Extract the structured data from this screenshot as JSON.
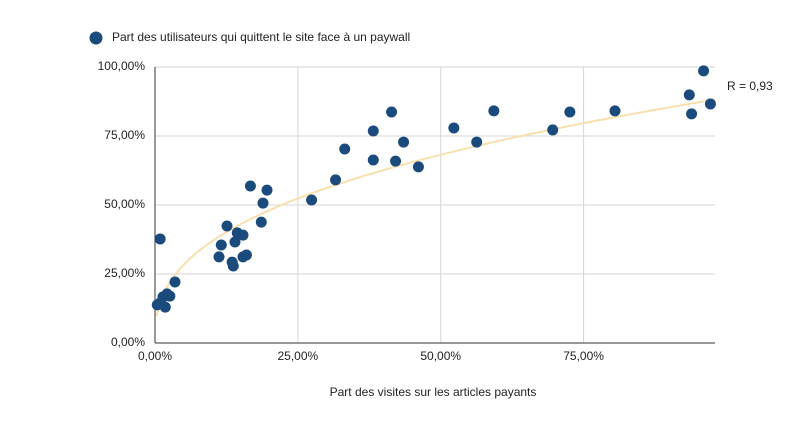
{
  "chart_data": {
    "type": "scatter",
    "x_label": "Part des visites sur les articles payants",
    "legend": "top-left",
    "grid": true,
    "xlim": [
      0,
      98
    ],
    "ylim": [
      0,
      100
    ],
    "xticks": [
      {
        "value": 0,
        "label": "0,00%"
      },
      {
        "value": 25,
        "label": "25,00%"
      },
      {
        "value": 50,
        "label": "50,00%"
      },
      {
        "value": 75,
        "label": "75,00%"
      }
    ],
    "yticks": [
      {
        "value": 0,
        "label": "0,00%"
      },
      {
        "value": 25,
        "label": "25,00%"
      },
      {
        "value": 50,
        "label": "50,00%"
      },
      {
        "value": 75,
        "label": "75,00%"
      },
      {
        "value": 100,
        "label": "100,00%"
      }
    ],
    "trendline": {
      "type": "power",
      "label": "R = 0,93",
      "color": "#f8dfae",
      "label_color": "#e8a23a"
    },
    "series": [
      {
        "name": "Part des utilisateurs qui quittent le site face à un paywall",
        "color": "#1b4a7c",
        "x": [
          0.9,
          0.4,
          0.9,
          1.4,
          1.8,
          2.1,
          2.6,
          3.5,
          11.6,
          12.6,
          11.2,
          13.5,
          13.7,
          14,
          14.4,
          15.4,
          15.4,
          16,
          16.7,
          18.6,
          18.9,
          19.6,
          27.4,
          31.6,
          33.2,
          38.2,
          38.2,
          41.4,
          42.1,
          43.5,
          46.1,
          52.3,
          56.3,
          59.3,
          69.6,
          72.6,
          80.5,
          93.5,
          93.9,
          96,
          97.2
        ],
        "values": [
          37.7,
          13.8,
          14.5,
          16.7,
          13,
          17.8,
          17,
          22.1,
          35.5,
          42.4,
          31.2,
          29.3,
          27.9,
          36.6,
          39.9,
          39.1,
          31.2,
          31.9,
          56.9,
          43.8,
          50.7,
          55.4,
          51.8,
          59.1,
          70.3,
          76.8,
          66.3,
          83.7,
          65.9,
          72.8,
          63.8,
          77.9,
          72.8,
          84.1,
          77.2,
          83.7,
          84.1,
          89.9,
          83,
          98.6,
          86.6
        ]
      }
    ]
  }
}
